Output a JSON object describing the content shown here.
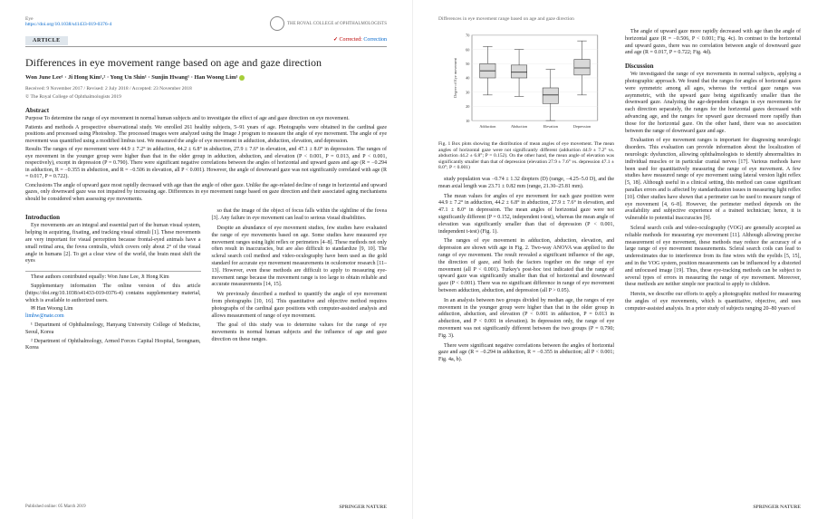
{
  "journal": {
    "name": "Eye",
    "doi": "https://doi.org/10.1038/s41433-019-0376-4",
    "publisher_right": "THE ROYAL COLLEGE of OPHTHALMOLOGISTS"
  },
  "badge": "ARTICLE",
  "correction": {
    "label": "Corrected:",
    "link": "Correction"
  },
  "title": "Differences in eye movement range based on age and gaze direction",
  "authors_line": "Won June Lee¹ · Ji Hong Kim¹,² · Yong Un Shin¹ · Sunjin Hwang¹ · Han Woong Lim¹",
  "dates": "Received: 9 November 2017 / Revised: 2 July 2018 / Accepted: 23 November 2018",
  "copyright": "© The Royal College of Ophthalmologists 2019",
  "abstract": {
    "heading": "Abstract",
    "purpose": "Purpose To determine the range of eye movement in normal human subjects and to investigate the effect of age and gaze direction on eye movement.",
    "patients": "Patients and methods A prospective observational study. We enrolled 261 healthy subjects, 5–91 years of age. Photographs were obtained in the cardinal gaze positions and processed using Photoshop. The processed images were analyzed using the Image J program to measure the angle of eye movement. The angle of eye movement was quantified using a modified limbus test. We measured the angle of eye movement in adduction, abduction, elevation, and depression.",
    "results": "Results The ranges of eye movement were 44.9 ± 7.2° in adduction, 44.2 ± 6.8° in abduction, 27.9 ± 7.6° in elevation, and 47.1 ± 8.0° in depression. The ranges of eye movement in the younger group were higher than that in the older group in adduction, abduction, and elevation (P < 0.001, P = 0.013, and P < 0.001, respectively), except in depression (P = 0.790). There were significant negative correlations between the angles of horizontal and upward gazes and age (R = −0.294 in adduction, R = −0.355 in abduction, and R = −0.506 in elevation, all P < 0.001). However, the angle of downward gaze was not significantly correlated with age (R = 0.017, P = 0.722).",
    "conclusions": "Conclusions The angle of upward gaze most rapidly decreased with age than the angle of other gaze. Unlike the age-related decline of range in horizontal and upward gazes, only downward gaze was not impaired by increasing age. Differences in eye movement range based on gaze direction and their associated aging mechanisms should be considered when assessing eye movements."
  },
  "intro_heading": "Introduction",
  "intro_p1": "Eye movements are an integral and essential part of the human visual system, helping in acquiring, fixating, and tracking visual stimuli [1]. These movements are very important for visual perception because frontal-eyed animals have a small retinal area, the fovea centralis, which covers only about 2° of the visual angle in humans [2]. To get a clear view of the world, the brain must shift the eyes",
  "intro_p2": "so that the image of the object of focus falls within the sightline of the fovea [3]. Any failure in eye movement can lead to serious visual disabilities.",
  "intro_p3": "Despite an abundance of eye movement studies, few studies have evaluated the range of eye movements based on age. Some studies have measured eye movement ranges using light reflex or perimeters [4–8]. These methods not only often result in inaccuracies, but are also difficult to standardize [9, 10]. The scleral search coil method and video-oculography have been used as the gold standard for accurate eye movement measurements in oculomotor research [11–13]. However, even these methods are difficult to apply to measuring eye-movement range because the movement range is too large to obtain reliable and accurate measurements [14, 15].",
  "intro_p4": "We previously described a method to quantify the angle of eye movement from photographs [10, 16]. This quantitative and objective method requires photographs of the cardinal gaze positions with computer-assisted analysis and allows measurement of range of eye movement.",
  "intro_p5": "The goal of this study was to determine values for the range of eye movements in normal human subjects and the influence of age and gaze direction on these ranges.",
  "footnotes": {
    "equal": "These authors contributed equally: Won June Lee, Ji Hong Kim",
    "supp": "Supplementary information The online version of this article (https://doi.org/10.1038/s41433-019-0376-4) contains supplementary material, which is available to authorized users.",
    "corr_name": "Han Woong Lim",
    "corr_email": "limhw@nate.com",
    "aff1": "¹ Department of Ophthalmology, Hanyang University College of Medicine, Seoul, Korea",
    "aff2": "² Department of Ophthalmology, Armed Forces Capital Hospital, Seongnam, Korea"
  },
  "left_footer": {
    "pub": "Published online: 05 March 2019",
    "brand": "SPRINGER NATURE"
  },
  "right_header": "Differences in eye movement range based on age and gaze direction",
  "figure": {
    "caption": "Fig. 1 Box plots showing the distribution of mean angles of eye movement. The mean angles of horizontal gaze were not significantly different (adduction 44.9 ± 7.2° vs. abduction 44.2 ± 6.8°; P = 0.152). On the other hand, the mean angle of elevation was significantly smaller than that of depression (elevation 27.9 ± 7.6° vs. depression 47.1 ± 8.0°; P < 0.001)",
    "type": "boxplot",
    "ylabel": "Degree of Eye movement",
    "ylim": [
      10,
      70
    ],
    "ytick_step": 10,
    "categories": [
      "Adduction",
      "Abduction",
      "Elevation",
      "Depression"
    ],
    "boxes": [
      {
        "q1": 40,
        "med": 45,
        "q3": 50,
        "lo": 28,
        "hi": 62
      },
      {
        "q1": 40,
        "med": 44,
        "q3": 49,
        "lo": 27,
        "hi": 60
      },
      {
        "q1": 22,
        "med": 28,
        "q3": 33,
        "lo": 10,
        "hi": 46
      },
      {
        "q1": 42,
        "med": 47,
        "q3": 53,
        "lo": 28,
        "hi": 66
      }
    ],
    "box_fill": "#d9d9d9",
    "stroke": "#333333",
    "background": "#ffffff",
    "grid_color": "#e6e6e6",
    "font_size": 5
  },
  "right_col1": {
    "p1": "study population was −0.74 ± 1.32 diopters (D) (range, −4.25–5.0 D), and the mean axial length was 23.71 ± 0.82 mm (range, 21.30–25.81 mm).",
    "p2": "The mean values for angles of eye movement for each gaze position were 44.9 ± 7.2° in adduction, 44.2 ± 6.8° in abduction, 27.9 ± 7.6° in elevation, and 47.1 ± 8.0° in depression. The mean angles of horizontal gaze were not significantly different (P = 0.152, independent t-test), whereas the mean angle of elevation was significantly smaller than that of depression (P < 0.001, independent t-test) (Fig. 1).",
    "p3": "The ranges of eye movement in adduction, abduction, elevation, and depression are shown with age in Fig. 2. Two-way ANOVA was applied to the range of eye movement. The result revealed a significant influence of the age, the direction of gaze, and both the factors together on the range of eye movement (all P < 0.001). Turkey's post-hoc test indicated that the range of upward gaze was significantly smaller than that of horizontal and downward gaze (P < 0.001). There was no significant difference in range of eye movement between adduction, abduction, and depression (all P > 0.05).",
    "p4": "In an analysis between two groups divided by median age, the ranges of eye movement in the younger group were higher than that in the older group in adduction, abduction, and elevation (P < 0.001 in adduction, P = 0.013 in abduction, and P < 0.001 in elevation). In depression only, the range of eye movement was not significantly different between the two groups (P = 0.790; Fig. 3).",
    "p5": "There were significant negative correlations between the angles of horizontal gaze and age (R = −0.294 in adduction, R = −0.355 in abduction; all P < 0.001; Fig. 4a, b)."
  },
  "right_col2": {
    "p1": "The angle of upward gaze more rapidly decreased with age than the angle of horizontal gaze (R = −0.506, P < 0.001; Fig. 4c). In contrast to the horizontal and upward gazes, there was no correlation between angle of downward gaze and age (R = 0.017, P = 0.722; Fig. 4d).",
    "discussion": "Discussion",
    "p2": "We investigated the range of eye movements in normal subjects, applying a photographic approach. We found that the ranges for angles of horizontal gazes were symmetric among all ages, whereas the vertical gaze ranges was asymmetric, with the upward gaze being significantly smaller than the downward gaze. Analyzing the age-dependent changes in eye movements for each direction separately, the ranges for the horizontal gazes decreased with advancing age, and the ranges for upward gaze decreased more rapidly than those for the horizontal gaze. On the other hand, there was no association between the range of downward gaze and age.",
    "p3": "Evaluation of eye movement ranges is important for diagnosing neurologic disorders. This evaluation can provide information about the localization of neurologic dysfunction, allowing ophthalmologists to identify abnormalities in individual muscles or in particular cranial nerves [17]. Various methods have been used for quantitatively measuring the range of eye movement. A few studies have measured range of eye movement using lateral version light reflex [5, 18]. Although useful in a clinical setting, this method can cause significant parallax errors and is affected by standardization issues in measuring light reflex [10]. Other studies have shown that a perimeter can be used to measure range of eye movement [4, 6–8]. However, the perimeter method depends on the availability and subjective experience of a trained technician; hence, it is vulnerable to potential inaccuracies [9].",
    "p4": "Scleral search coils and video-oculography (VOG) are generally accepted as reliable methods for measuring eye movement [11]. Although allowing precise measurement of eye movement, these methods may reduce the accuracy of a large range of eye movement measurements. Scleral search coils can lead to underestimates due to interference from its fine wires with the eyelids [5, 15], and in the VOG system, position measurements can be influenced by a distorted and unfocused image [19]. Thus, these eye-tracking methods can be subject to several types of errors in measuring the range of eye movement. Moreover, these methods are neither simple nor practical to apply to children.",
    "p5": "Herein, we describe our efforts to apply a photographic method for measuring the angles of eye movements, which is quantitative, objective, and uses computer-assisted analysis. In a prior study of subjects ranging 20–80 years of"
  },
  "right_footer": "SPRINGER NATURE"
}
